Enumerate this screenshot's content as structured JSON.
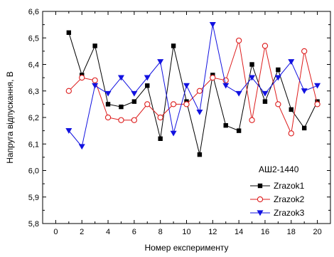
{
  "chart_data": {
    "type": "line",
    "xlabel": "Номер експерименту",
    "ylabel": "Напруга відпускання, В",
    "xlim": [
      -1,
      21
    ],
    "ylim": [
      5.8,
      6.6
    ],
    "xticks": [
      0,
      2,
      4,
      6,
      8,
      10,
      12,
      14,
      16,
      18,
      20
    ],
    "yticks": [
      5.8,
      5.9,
      6.0,
      6.1,
      6.2,
      6.3,
      6.4,
      6.5,
      6.6
    ],
    "ytick_labels": [
      "5,8",
      "5,9",
      "6,0",
      "6,1",
      "6,2",
      "6,3",
      "6,4",
      "6,5",
      "6,6"
    ],
    "legend_title": "АШ2-1440",
    "legend_position": "lower-right",
    "grid": false,
    "x": [
      1,
      2,
      3,
      4,
      5,
      6,
      7,
      8,
      9,
      10,
      11,
      12,
      13,
      14,
      15,
      16,
      17,
      18,
      19,
      20
    ],
    "series": [
      {
        "name": "Zrazok1",
        "color": "#000000",
        "marker": "filled-square",
        "values": [
          6.52,
          6.36,
          6.47,
          6.25,
          6.24,
          6.26,
          6.32,
          6.12,
          6.47,
          6.26,
          6.06,
          6.36,
          6.17,
          6.15,
          6.4,
          6.26,
          6.38,
          6.23,
          6.16,
          6.26
        ]
      },
      {
        "name": "Zrazok2",
        "color": "#dd1c1c",
        "marker": "open-circle",
        "values": [
          6.3,
          6.35,
          6.34,
          6.2,
          6.19,
          6.19,
          6.25,
          6.2,
          6.25,
          6.25,
          6.3,
          6.35,
          6.34,
          6.49,
          6.19,
          6.47,
          6.25,
          6.14,
          6.45,
          6.25
        ]
      },
      {
        "name": "Zrazok3",
        "color": "#1212e0",
        "marker": "filled-triangle-down",
        "values": [
          6.15,
          6.09,
          6.32,
          6.29,
          6.35,
          6.29,
          6.35,
          6.41,
          6.14,
          6.32,
          6.22,
          6.55,
          6.32,
          6.29,
          6.35,
          6.29,
          6.35,
          6.41,
          6.3,
          6.32
        ]
      }
    ]
  }
}
